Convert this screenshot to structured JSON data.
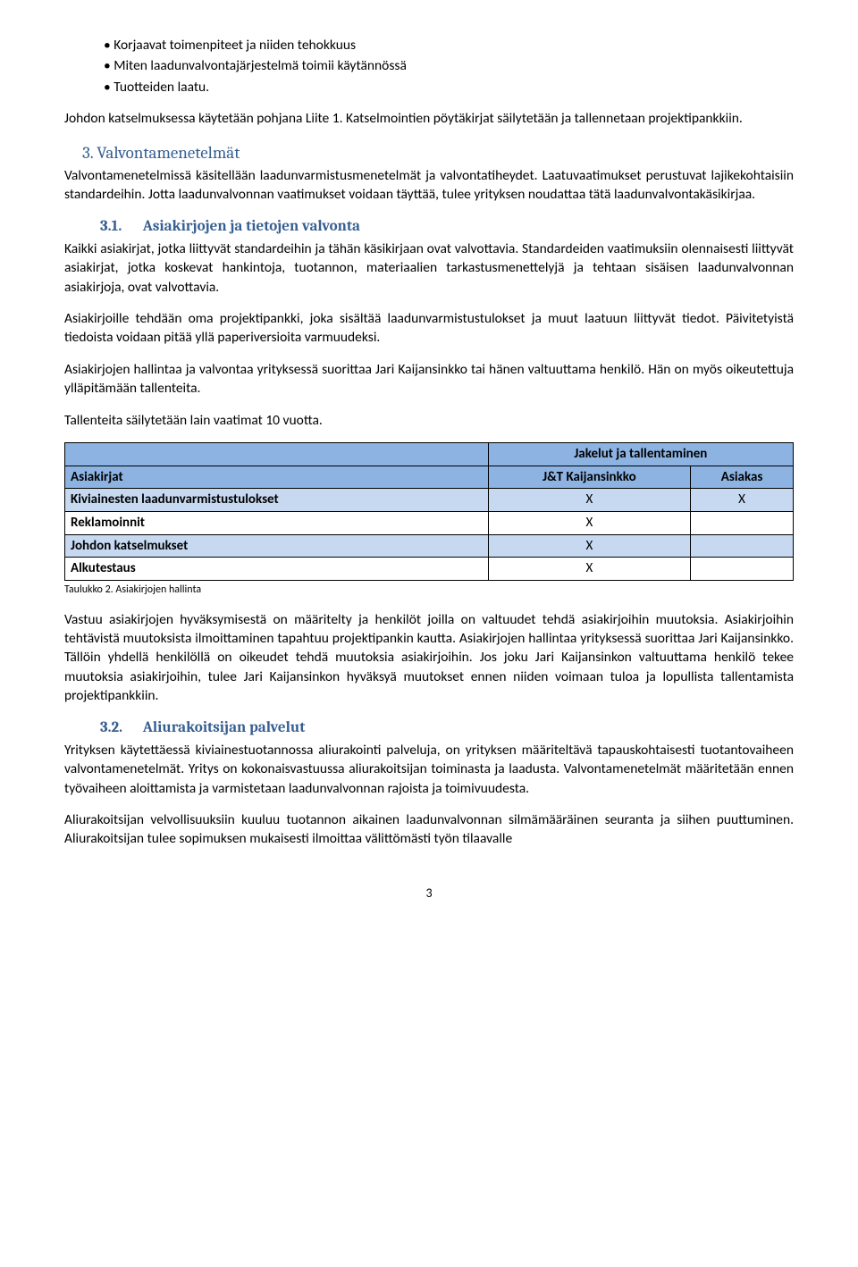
{
  "bullets": [
    "Korjaavat toimenpiteet ja niiden tehokkuus",
    "Miten laadunvalvontajärjestelmä toimii käytännössä",
    "Tuotteiden laatu."
  ],
  "p1": "Johdon katselmuksessa käytetään pohjana Liite 1. Katselmointien pöytäkirjat säilytetään ja tallennetaan projektipankkiin.",
  "h2": "3. Valvontamenetelmät",
  "p2": "Valvontamenetelmissä käsitellään laadunvarmistusmenetelmät ja valvontatiheydet. Laatuvaatimukset perustuvat lajikekohtaisiin standardeihin. Jotta laadunvalvonnan vaatimukset voidaan täyttää, tulee yrityksen noudattaa tätä laadunvalvontakäsikirjaa.",
  "h3a_num": "3.1.",
  "h3a_title": "Asiakirjojen ja tietojen valvonta",
  "p3": "Kaikki asiakirjat, jotka liittyvät standardeihin ja tähän käsikirjaan ovat valvottavia. Standardeiden vaatimuksiin olennaisesti liittyvät asiakirjat, jotka koskevat hankintoja, tuotannon, materiaalien tarkastusmenettelyjä ja tehtaan sisäisen laadunvalvonnan asiakirjoja, ovat valvottavia.",
  "p4": "Asiakirjoille tehdään oma projektipankki, joka sisältää laadunvarmistustulokset ja muut laatuun liittyvät tiedot. Päivitetyistä tiedoista voidaan pitää yllä paperiversioita varmuudeksi.",
  "p5": "Asiakirjojen hallintaa ja valvontaa yrityksessä suorittaa Jari Kaijansinkko tai hänen valtuuttama henkilö. Hän on myös oikeutettuja ylläpitämään tallenteita.",
  "p6": "Tallenteita säilytetään lain vaatimat 10 vuotta.",
  "table": {
    "header_span": "Jakelut ja tallentaminen",
    "col0": "Asiakirjat",
    "col1": "J&T Kaijansinkko",
    "col2": "Asiakas",
    "rows": [
      {
        "label": "Kiviainesten laadunvarmistustulokset",
        "c1": "X",
        "c2": "X",
        "alt": true
      },
      {
        "label": "Reklamoinnit",
        "c1": "X",
        "c2": "",
        "alt": false
      },
      {
        "label": "Johdon katselmukset",
        "c1": "X",
        "c2": "",
        "alt": true
      },
      {
        "label": "Alkutestaus",
        "c1": "X",
        "c2": "",
        "alt": false
      }
    ]
  },
  "caption": "Taulukko 2. Asiakirjojen hallinta",
  "p7": "Vastuu asiakirjojen hyväksymisestä on määritelty ja henkilöt joilla on valtuudet tehdä asiakirjoihin muutoksia. Asiakirjoihin tehtävistä muutoksista ilmoittaminen tapahtuu projektipankin kautta. Asiakirjojen hallintaa yrityksessä suorittaa Jari Kaijansinkko. Tällöin yhdellä henkilöllä on oikeudet tehdä muutoksia asiakirjoihin. Jos joku Jari Kaijansinkon valtuuttama henkilö tekee muutoksia asiakirjoihin, tulee Jari Kaijansinkon hyväksyä muutokset ennen niiden voimaan tuloa ja lopullista tallentamista projektipankkiin.",
  "h3b_num": "3.2.",
  "h3b_title": "Aliurakoitsijan palvelut",
  "p8": "Yrityksen käytettäessä kiviainestuotannossa aliurakointi palveluja, on yrityksen määriteltävä tapauskohtaisesti tuotantovaiheen valvontamenetelmät. Yritys on kokonaisvastuussa aliurakoitsijan toiminasta ja laadusta. Valvontamenetelmät määritetään ennen työvaiheen aloittamista ja varmistetaan laadunvalvonnan rajoista ja toimivuudesta.",
  "p9": "Aliurakoitsijan velvollisuuksiin kuuluu tuotannon aikainen laadunvalvonnan silmämääräinen seuranta ja siihen puuttuminen. Aliurakoitsijan tulee sopimuksen mukaisesti ilmoittaa välittömästi työn tilaavalle",
  "page": "3"
}
